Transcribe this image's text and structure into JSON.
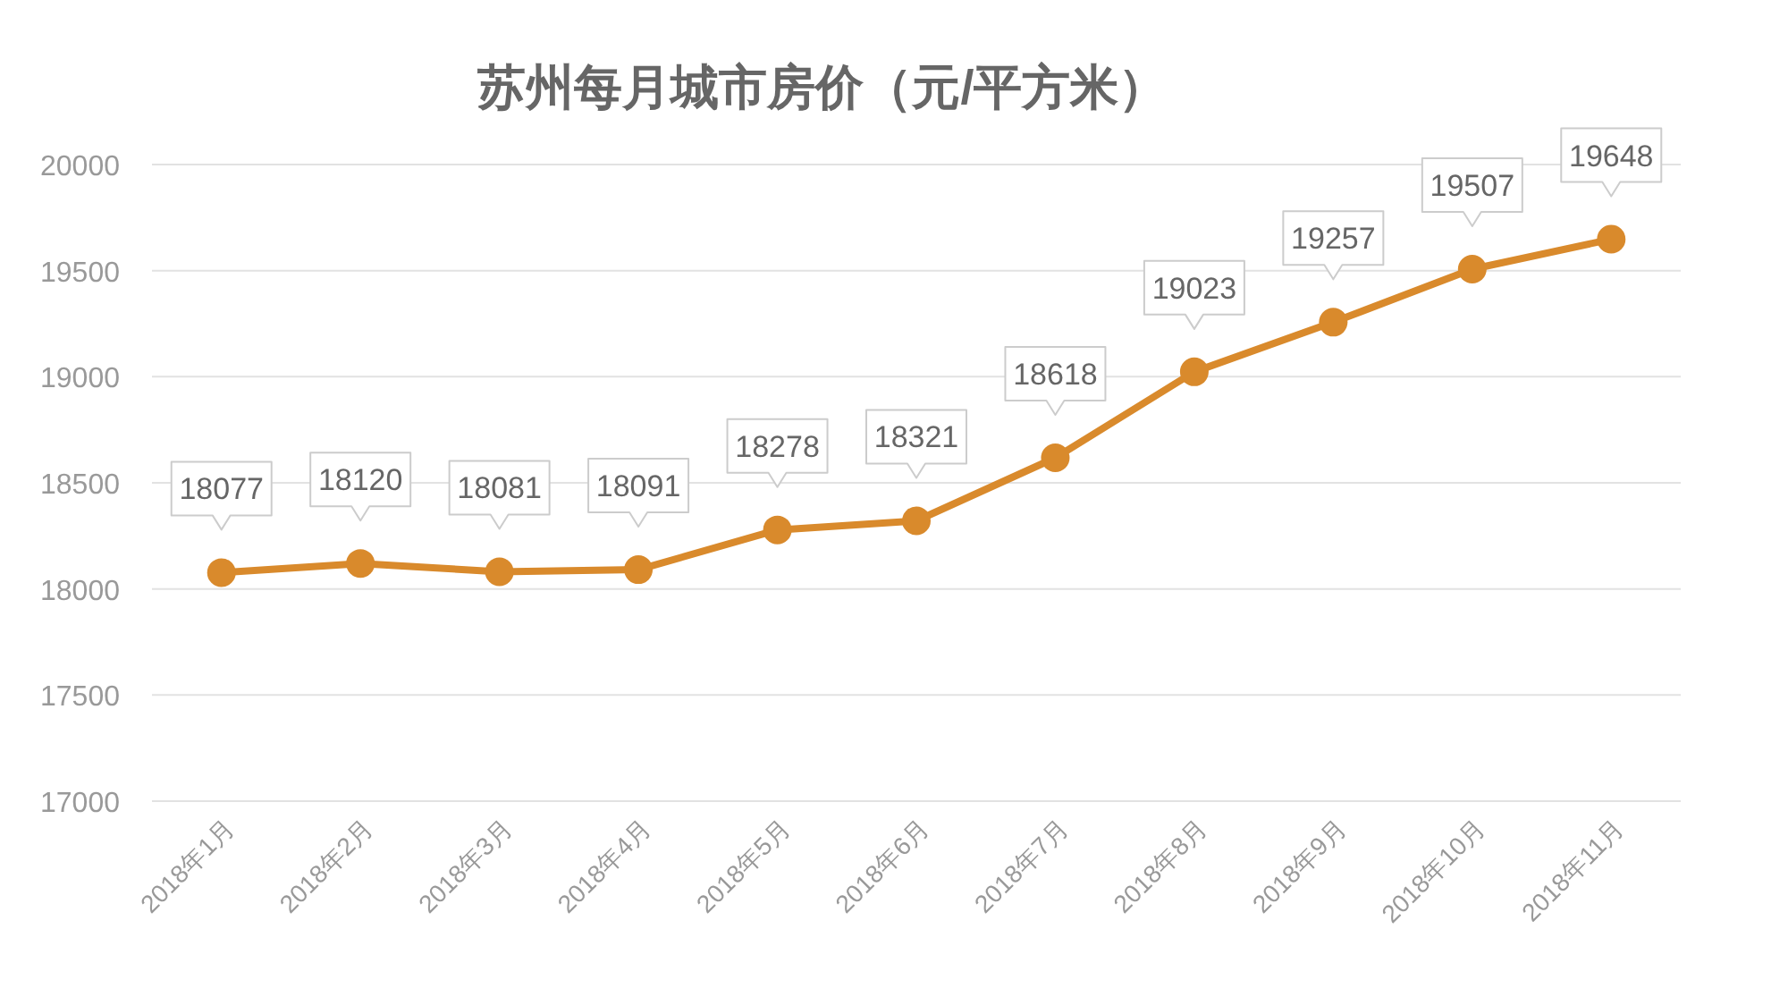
{
  "chart_data": {
    "type": "line",
    "title": "苏州每月城市房价（元/平方米）",
    "categories": [
      "2018年1月",
      "2018年2月",
      "2018年3月",
      "2018年4月",
      "2018年5月",
      "2018年6月",
      "2018年7月",
      "2018年8月",
      "2018年9月",
      "2018年10月",
      "2018年11月"
    ],
    "series": [
      {
        "color": "#d98a2c",
        "values": [
          18077,
          18120,
          18081,
          18091,
          18278,
          18321,
          18618,
          19023,
          19257,
          19507,
          19648
        ]
      }
    ],
    "ylim": [
      17000,
      20000
    ],
    "yticks": [
      17000,
      17500,
      18000,
      18500,
      19000,
      19500,
      20000
    ],
    "grid": "y",
    "marker": "circle",
    "line_style": "solid",
    "data_labels": true
  }
}
